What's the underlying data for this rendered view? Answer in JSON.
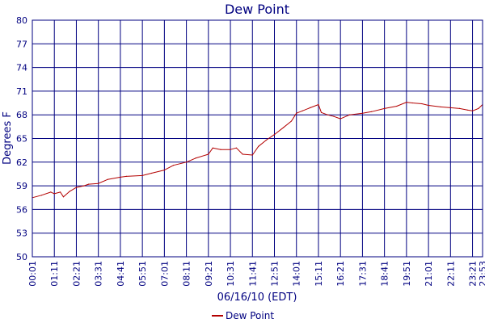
{
  "chart_data": {
    "type": "line",
    "title": "Dew Point",
    "xlabel": "06/16/10 (EDT)",
    "ylabel": "Degrees F",
    "ylim": [
      50,
      80
    ],
    "y_ticks": [
      "50",
      "53",
      "56",
      "59",
      "62",
      "65",
      "68",
      "71",
      "74",
      "77",
      "80"
    ],
    "x_tick_labels": [
      "00:01",
      "01:11",
      "02:21",
      "03:31",
      "04:41",
      "05:51",
      "07:01",
      "08:11",
      "09:21",
      "10:31",
      "11:41",
      "12:51",
      "14:01",
      "15:11",
      "16:21",
      "17:31",
      "18:41",
      "19:51",
      "21:01",
      "22:11",
      "23:21",
      "23:53"
    ],
    "grid": true,
    "legend_position": "bottom-center",
    "colors": {
      "series": "#b30000",
      "text": "#000080",
      "grid": "#000080"
    },
    "series": [
      {
        "name": "Dew Point",
        "x": [
          "00:01",
          "00:30",
          "01:00",
          "01:11",
          "01:30",
          "01:40",
          "02:00",
          "02:21",
          "02:45",
          "03:00",
          "03:31",
          "04:00",
          "04:41",
          "05:00",
          "05:51",
          "06:20",
          "07:01",
          "07:30",
          "08:11",
          "08:40",
          "09:21",
          "09:35",
          "10:00",
          "10:31",
          "10:50",
          "11:10",
          "11:41",
          "12:00",
          "12:25",
          "12:51",
          "13:20",
          "13:45",
          "14:01",
          "14:20",
          "14:45",
          "15:11",
          "15:20",
          "15:40",
          "16:00",
          "16:21",
          "16:50",
          "17:31",
          "18:00",
          "18:41",
          "19:20",
          "19:51",
          "20:10",
          "20:40",
          "21:01",
          "21:40",
          "22:11",
          "22:40",
          "23:05",
          "23:21",
          "23:40",
          "23:53"
        ],
        "values": [
          57.5,
          57.8,
          58.2,
          58.0,
          58.2,
          57.6,
          58.3,
          58.8,
          59.0,
          59.2,
          59.3,
          59.8,
          60.1,
          60.2,
          60.3,
          60.6,
          61.0,
          61.6,
          62.0,
          62.5,
          63.0,
          63.8,
          63.6,
          63.6,
          63.8,
          63.0,
          62.9,
          64.0,
          64.8,
          65.5,
          66.4,
          67.2,
          68.2,
          68.5,
          68.9,
          69.3,
          68.3,
          68.0,
          67.8,
          67.5,
          68.0,
          68.2,
          68.4,
          68.8,
          69.1,
          69.6,
          69.5,
          69.4,
          69.2,
          69.0,
          68.9,
          68.8,
          68.6,
          68.5,
          68.8,
          69.3
        ]
      }
    ]
  }
}
